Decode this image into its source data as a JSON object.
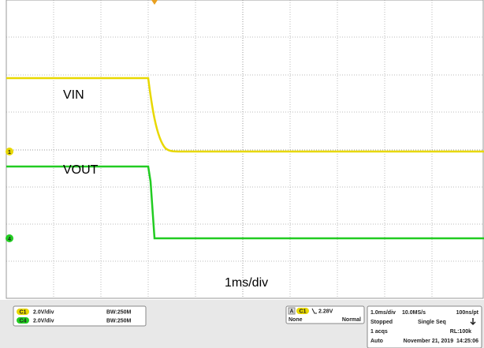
{
  "screen": {
    "annotations": {
      "vin": "VIN",
      "vout": "VOUT",
      "timebase": "1ms/div"
    },
    "markers": {
      "ch1": "1",
      "ch4": "4"
    },
    "channels": [
      {
        "badge": "C1",
        "scale": "2.0V/div",
        "bandwidth": "BW:250M"
      },
      {
        "badge": "C4",
        "scale": "2.0V/div",
        "bandwidth": "BW:250M"
      }
    ],
    "trigger": {
      "badge_a": "A",
      "source": "C1",
      "level": "2.28V",
      "coupling": "None",
      "mode": "Normal"
    },
    "acquisition": {
      "timebase": "1.0ms/div",
      "sample_rate": "10.0MS/s",
      "resolution": "100ns/pt",
      "state": "Stopped",
      "run_mode": "Single Seq",
      "acqs": "1 acqs",
      "record_length": "RL:100k",
      "auto": "Auto",
      "datetime": "November 21, 2019  14:25:06"
    }
  }
}
